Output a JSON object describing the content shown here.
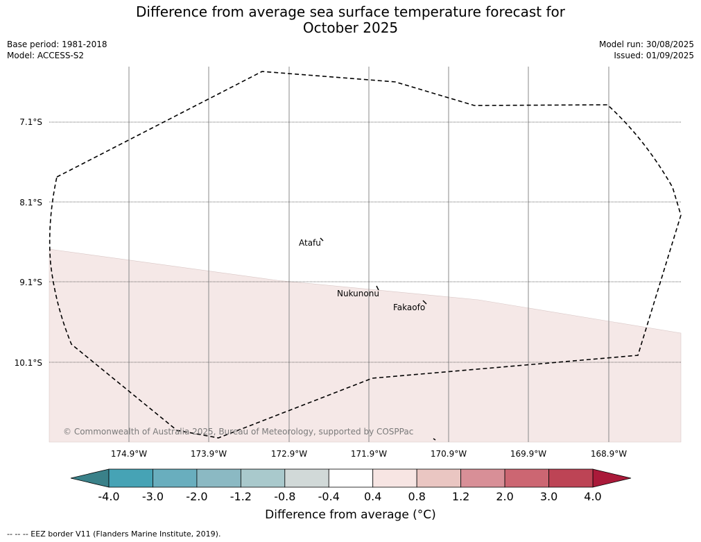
{
  "header": {
    "title_line1": "Difference from average sea surface temperature forecast for",
    "title_line2": "October 2025",
    "base_period": "Base period: 1981-2018",
    "model": "Model: ACCESS-S2",
    "model_run": "Model run: 30/08/2025",
    "issued": "Issued: 01/09/2025"
  },
  "map": {
    "copyright": "© Commonwealth of Australia 2025, Bureau of Meteorology, supported by COSPPac",
    "latitudes": [
      "7.1°S",
      "8.1°S",
      "9.1°S",
      "10.1°S"
    ],
    "longitudes": [
      "174.9°W",
      "173.9°W",
      "172.9°W",
      "171.9°W",
      "170.9°W",
      "169.9°W",
      "168.9°W"
    ],
    "places": [
      "Atafu",
      "Nukunonu",
      "Fakaofo"
    ],
    "anomaly_band_color": "#f5e8e7"
  },
  "colorbar": {
    "ticks": [
      "-4.0",
      "-3.0",
      "-2.0",
      "-1.2",
      "-0.8",
      "-0.4",
      "0.4",
      "0.8",
      "1.2",
      "2.0",
      "3.0",
      "4.0"
    ],
    "colors": [
      "#46a3b5",
      "#69aebe",
      "#8bb9c3",
      "#a9c9cc",
      "#d1d9d8",
      "#ffffff",
      "#f7e5e3",
      "#eac6c2",
      "#d88f97",
      "#cc6672",
      "#bd4455"
    ],
    "under_color": "#3a8189",
    "over_color": "#aa1a3a",
    "title": "Difference from average (°C)"
  },
  "legend": {
    "eez": "-- -- -- EEZ border V11 (Flanders Marine Institute, 2019)."
  }
}
